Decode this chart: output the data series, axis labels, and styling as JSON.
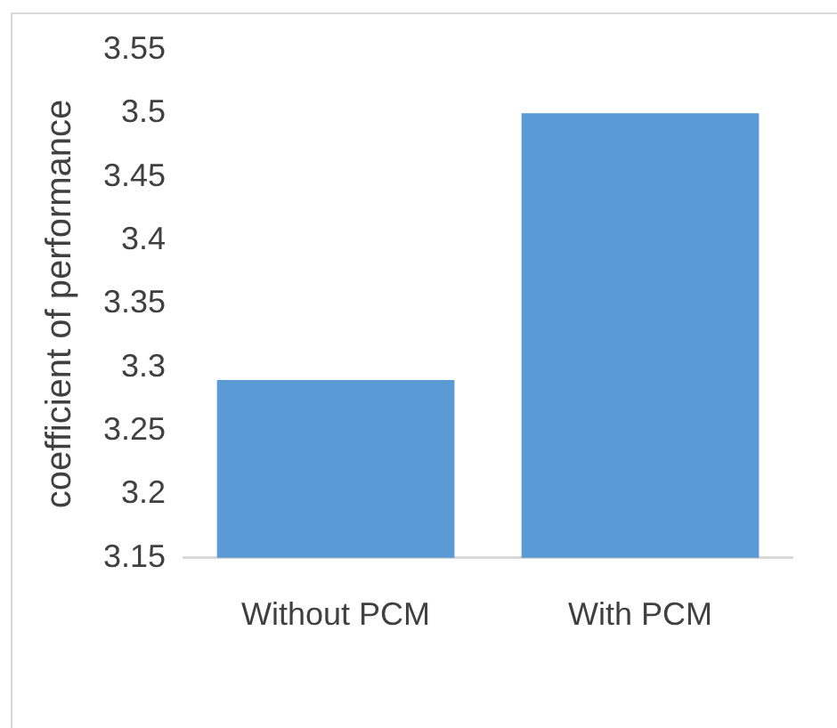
{
  "chart_data": {
    "type": "bar",
    "ylabel": "coefficient of performance",
    "categories": [
      "Without PCM",
      "With PCM"
    ],
    "values": [
      3.29,
      3.5
    ],
    "color": "#5b9bd5",
    "ylim": [
      3.15,
      3.55
    ],
    "yticks": [
      3.15,
      3.2,
      3.25,
      3.3,
      3.35,
      3.4,
      3.45,
      3.5,
      3.55
    ],
    "grid": false,
    "legend": false
  }
}
